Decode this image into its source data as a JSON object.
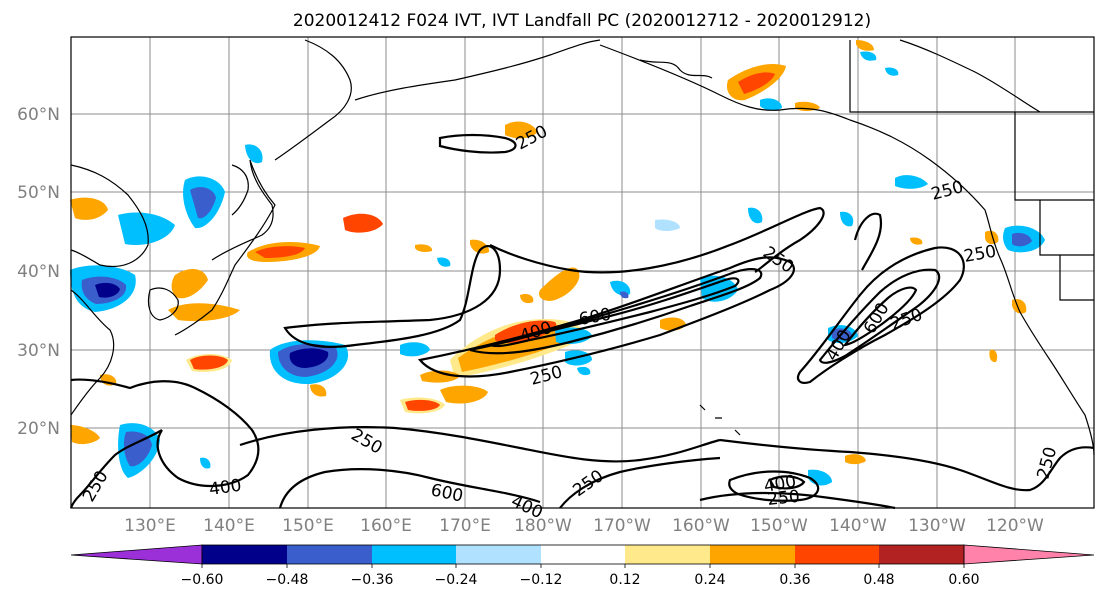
{
  "title": "2020012412 F024 IVT, IVT Landfall PC (2020012712 - 2020012912)",
  "map": {
    "lat_labels": [
      "60°N",
      "50°N",
      "40°N",
      "30°N",
      "20°N"
    ],
    "lon_labels": [
      "130°E",
      "140°E",
      "150°E",
      "160°E",
      "170°E",
      "180°W",
      "170°W",
      "160°W",
      "150°W",
      "140°W",
      "130°W",
      "120°W"
    ],
    "contour_labels": [
      "250",
      "250",
      "250",
      "250",
      "250",
      "600",
      "400",
      "250",
      "400",
      "600",
      "250",
      "250",
      "400",
      "600",
      "400",
      "250",
      "250",
      "400",
      "250"
    ],
    "contour_levels": [
      250,
      400,
      600
    ]
  },
  "colorbar": {
    "tick_labels": [
      "−0.60",
      "−0.48",
      "−0.36",
      "−0.24",
      "−0.12",
      "0.12",
      "0.24",
      "0.36",
      "0.48",
      "0.60"
    ],
    "colors": [
      "#9b30d9",
      "#00008b",
      "#3a5fcd",
      "#00bfff",
      "#b0e2ff",
      "#ffffff",
      "#ffe98a",
      "#ffa500",
      "#ff4500",
      "#b22222",
      "#ff82ab"
    ]
  }
}
